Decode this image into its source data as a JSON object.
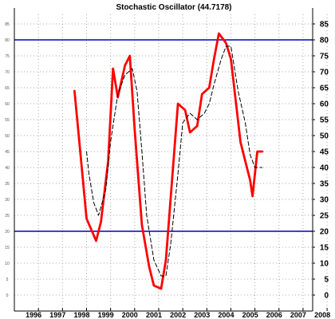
{
  "chart_data": {
    "type": "line",
    "title": "Stochastic Oscillator (44.7178)",
    "xlabel": "",
    "ylabel": "",
    "xlim": [
      1995.0,
      2007.4
    ],
    "ylim": [
      -4,
      88
    ],
    "x_ticks": [
      "1996",
      "1997",
      "1998",
      "1999",
      "2000",
      "2001",
      "2002",
      "2003",
      "2004",
      "2005",
      "2006",
      "2007",
      "2008"
    ],
    "y_ticks_right": [
      "0",
      "5",
      "10",
      "15",
      "20",
      "25",
      "30",
      "35",
      "40",
      "45",
      "50",
      "55",
      "60",
      "65",
      "70",
      "75",
      "80",
      "85"
    ],
    "y_ticks_left": [
      "0",
      "5",
      "10",
      "15",
      "20",
      "25",
      "30",
      "35",
      "40",
      "45",
      "50",
      "55",
      "60",
      "65",
      "70",
      "75",
      "80",
      "85"
    ],
    "reference_lines": [
      80,
      20
    ],
    "grid": true,
    "series": [
      {
        "color": "#ff0000",
        "style": "solid",
        "x": [
          1997.5,
          1997.8,
          1998.0,
          1998.4,
          1998.6,
          1998.9,
          1999.1,
          1999.3,
          1999.6,
          1999.8,
          2000.0,
          2000.3,
          2000.6,
          2000.8,
          2001.1,
          2001.3,
          2001.8,
          2002.1,
          2002.3,
          2002.6,
          2002.8,
          2003.1,
          2003.3,
          2003.5,
          2003.8,
          2004.0,
          2004.4,
          2004.6,
          2004.8,
          2004.9,
          2005.1,
          2005.3
        ],
        "y": [
          64,
          40,
          24,
          17,
          23,
          42,
          71,
          62,
          72,
          75,
          52,
          22,
          9,
          3,
          2,
          11,
          60,
          58,
          51,
          53,
          63,
          65,
          74,
          82,
          79,
          74,
          48,
          42,
          36,
          31,
          45,
          45
        ]
      },
      {
        "color": "#000000",
        "style": "dashed",
        "x": [
          1998.0,
          1998.1,
          1998.3,
          1998.5,
          1998.8,
          1999.0,
          1999.3,
          1999.6,
          1999.9,
          2000.1,
          2000.3,
          2000.5,
          2000.8,
          2001.1,
          2001.3,
          2001.5,
          2001.8,
          2002.0,
          2002.3,
          2002.6,
          2002.9,
          2003.1,
          2003.3,
          2003.6,
          2003.8,
          2004.0,
          2004.3,
          2004.6,
          2004.8,
          2005.0,
          2005.3
        ],
        "y": [
          45,
          38,
          29,
          25,
          33,
          48,
          63,
          69,
          71,
          64,
          45,
          25,
          11,
          6,
          6,
          16,
          38,
          54,
          57,
          55,
          57,
          60,
          66,
          74,
          78,
          78,
          64,
          54,
          44,
          40,
          40
        ]
      }
    ]
  }
}
